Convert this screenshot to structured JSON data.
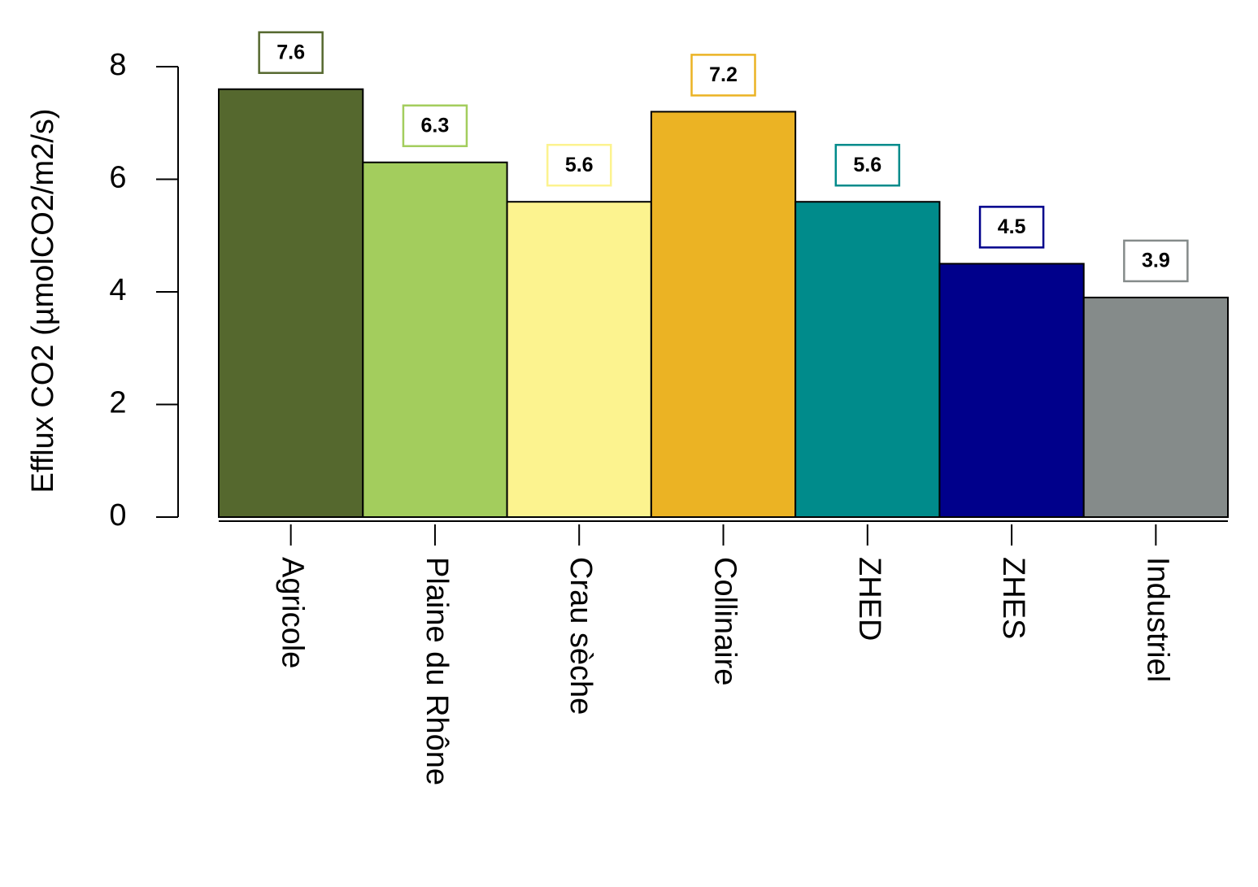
{
  "chart_data": {
    "type": "bar",
    "ylabel": "Efflux CO2 (µmolCO2/m2/s)",
    "categories": [
      "Agricole",
      "Plaine du Rhône",
      "Crau sèche",
      "Collinaire",
      "ZHED",
      "ZHES",
      "Industriel"
    ],
    "values": [
      7.6,
      6.3,
      5.6,
      7.2,
      5.6,
      4.5,
      3.9
    ],
    "colors": [
      "#55682e",
      "#a3cd5d",
      "#fcf38f",
      "#ebb324",
      "#008b8b",
      "#00008b",
      "#858b8a"
    ],
    "ylim": [
      0,
      8
    ],
    "yticks": [
      0,
      2,
      4,
      6,
      8
    ]
  }
}
